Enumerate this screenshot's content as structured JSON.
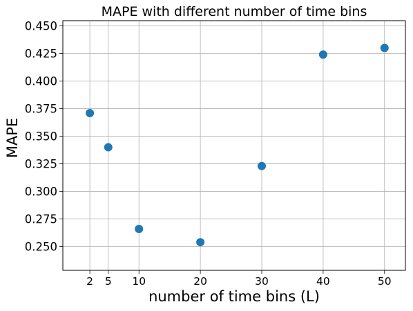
{
  "chart_data": {
    "type": "scatter",
    "title": "MAPE with different number of time bins",
    "xlabel": "number of time bins (L)",
    "ylabel": "MAPE",
    "x": [
      2,
      5,
      10,
      20,
      30,
      40,
      50
    ],
    "y": [
      0.371,
      0.34,
      0.266,
      0.254,
      0.323,
      0.424,
      0.43
    ],
    "x_ticks": [
      2,
      5,
      10,
      20,
      30,
      40,
      50
    ],
    "x_tick_labels": [
      "2",
      "5",
      "10",
      "20",
      "30",
      "40",
      "50"
    ],
    "y_ticks": [
      0.25,
      0.275,
      0.3,
      0.325,
      0.35,
      0.375,
      0.4,
      0.425,
      0.45
    ],
    "y_tick_labels": [
      "0.250",
      "0.275",
      "0.300",
      "0.325",
      "0.350",
      "0.375",
      "0.400",
      "0.425",
      "0.450"
    ],
    "xlim": [
      -2.4,
      53.4
    ],
    "ylim": [
      0.2285,
      0.4547
    ],
    "grid": true,
    "marker_color": "#1f77b4"
  }
}
